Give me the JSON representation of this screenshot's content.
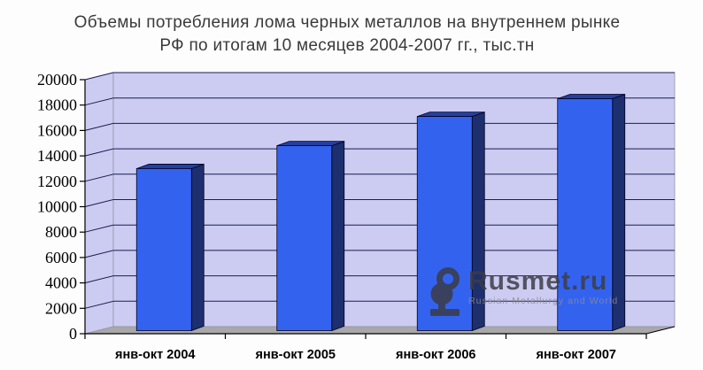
{
  "title": {
    "line1": "Объемы потребления лома черных металлов на внутреннем рынке",
    "line2": "РФ по итогам 10 месяцев 2004-2007 гг., тыс.тн"
  },
  "watermark": {
    "brand": "Rusmet.ru",
    "tagline": "Russian Metallurgy and World"
  },
  "chart_data": {
    "type": "bar",
    "style": "3d-column",
    "title": "Объемы потребления лома черных металлов на внутреннем рынке РФ по итогам 10 месяцев 2004-2007 гг., тыс.тн",
    "categories": [
      "янв-окт 2004",
      "янв-окт 2005",
      "янв-окт 2006",
      "янв-окт 2007"
    ],
    "values": [
      13000,
      14800,
      17100,
      18500
    ],
    "xlabel": "",
    "ylabel": "",
    "ylim": [
      0,
      20000
    ],
    "yticks": [
      0,
      2000,
      4000,
      6000,
      8000,
      10000,
      12000,
      14000,
      16000,
      18000,
      20000
    ],
    "grid": true,
    "legend": false,
    "colors": {
      "bar_front": "#3363ee",
      "bar_side": "#1d2f6e",
      "bar_top": "#24409e",
      "wall": "#ccccf2",
      "floor": "#a8a8a8",
      "gridline": "#1c1c52",
      "axis": "#000000",
      "wall_edge": "#9494a4",
      "title_text": "#3a3a3a",
      "watermark_text": "#3d3d46"
    }
  }
}
